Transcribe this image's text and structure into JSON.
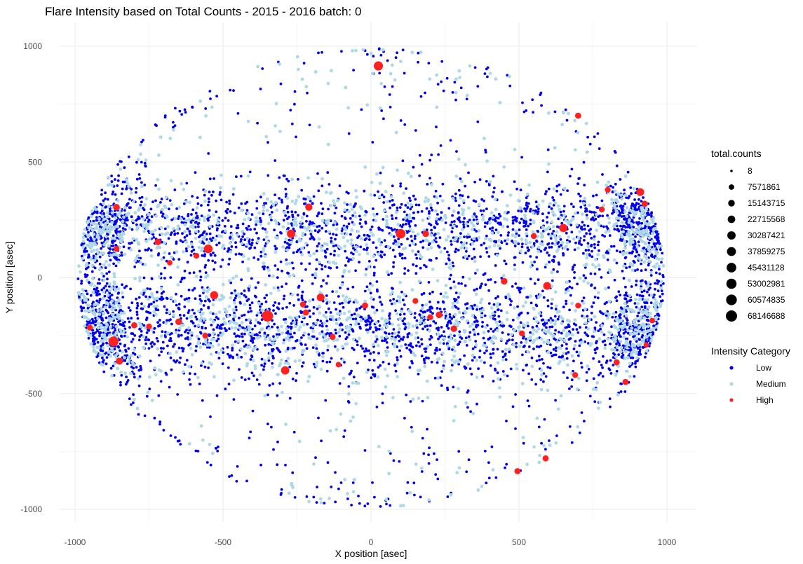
{
  "chart_data": {
    "type": "scatter",
    "title": "Flare Intensity based on Total Counts - 2015 - 2016  batch:  0",
    "xlabel": "X position [asec]",
    "ylabel": "Y position [asec]",
    "xlim": [
      -1000,
      1000
    ],
    "ylim": [
      -1000,
      1000
    ],
    "x_ticks": [
      -1000,
      -500,
      0,
      500,
      1000
    ],
    "y_ticks": [
      -1000,
      -500,
      0,
      500,
      1000
    ],
    "grid": true,
    "legend_placement": "right",
    "size_legend": {
      "title": "total.counts",
      "entries": [
        "8",
        "7571861",
        "15143715",
        "22715568",
        "30287421",
        "37859275",
        "45431128",
        "53002981",
        "60574835",
        "68146688"
      ]
    },
    "color_legend": {
      "title": "Intensity Category",
      "entries": [
        {
          "label": "Low",
          "color": "#0000ee"
        },
        {
          "label": "Medium",
          "color": "#add8e6"
        },
        {
          "label": "High",
          "color": "#ff2020"
        }
      ]
    },
    "sampled_points": {
      "note_counts_unit": "total.counts",
      "High": [
        {
          "x": 25,
          "y": 915,
          "counts": 40000000
        },
        {
          "x": 100,
          "y": 190,
          "counts": 45000000
        },
        {
          "x": -350,
          "y": -165,
          "counts": 68000000
        },
        {
          "x": -870,
          "y": -275,
          "counts": 50000000
        },
        {
          "x": -270,
          "y": 190,
          "counts": 30000000
        },
        {
          "x": -210,
          "y": 305,
          "counts": 20000000
        },
        {
          "x": -550,
          "y": 125,
          "counts": 35000000
        },
        {
          "x": -530,
          "y": -75,
          "counts": 28000000
        },
        {
          "x": -290,
          "y": -400,
          "counts": 30000000
        },
        {
          "x": -170,
          "y": -85,
          "counts": 25000000
        },
        {
          "x": 650,
          "y": 215,
          "counts": 30000000
        },
        {
          "x": 595,
          "y": -35,
          "counts": 25000000
        },
        {
          "x": 700,
          "y": 700,
          "counts": 12000000
        },
        {
          "x": 590,
          "y": -780,
          "counts": 12000000
        },
        {
          "x": 495,
          "y": -835,
          "counts": 12000000
        },
        {
          "x": 910,
          "y": 370,
          "counts": 25000000
        },
        {
          "x": 450,
          "y": -15,
          "counts": 15000000
        },
        {
          "x": -850,
          "y": -360,
          "counts": 18000000
        },
        {
          "x": -860,
          "y": 305,
          "counts": 15000000
        },
        {
          "x": -720,
          "y": 155,
          "counts": 15000000
        },
        {
          "x": 185,
          "y": 190,
          "counts": 15000000
        },
        {
          "x": 280,
          "y": -220,
          "counts": 15000000
        },
        {
          "x": 230,
          "y": -160,
          "counts": 15000000
        },
        {
          "x": 830,
          "y": -365,
          "counts": 12000000
        },
        {
          "x": 860,
          "y": -450,
          "counts": 12000000
        },
        {
          "x": 690,
          "y": -420,
          "counts": 10000000
        },
        {
          "x": -650,
          "y": -190,
          "counts": 15000000
        },
        {
          "x": -800,
          "y": -205,
          "counts": 12000000
        },
        {
          "x": -20,
          "y": -120,
          "counts": 12000000
        },
        {
          "x": -130,
          "y": -255,
          "counts": 12000000
        },
        {
          "x": 800,
          "y": 380,
          "counts": 10000000
        },
        {
          "x": 780,
          "y": 295,
          "counts": 10000000
        },
        {
          "x": -860,
          "y": 125,
          "counts": 10000000
        },
        {
          "x": -750,
          "y": -210,
          "counts": 10000000
        },
        {
          "x": -220,
          "y": -150,
          "counts": 12000000
        },
        {
          "x": -230,
          "y": -115,
          "counts": 10000000
        },
        {
          "x": 150,
          "y": -100,
          "counts": 10000000
        },
        {
          "x": 200,
          "y": -170,
          "counts": 10000000
        },
        {
          "x": 700,
          "y": -120,
          "counts": 10000000
        },
        {
          "x": 925,
          "y": 320,
          "counts": 12000000
        },
        {
          "x": 550,
          "y": 180,
          "counts": 10000000
        },
        {
          "x": -590,
          "y": 95,
          "counts": 10000000
        },
        {
          "x": -560,
          "y": -250,
          "counts": 10000000
        },
        {
          "x": 510,
          "y": -240,
          "counts": 10000000
        },
        {
          "x": -110,
          "y": -375,
          "counts": 8000000
        },
        {
          "x": -950,
          "y": -215,
          "counts": 10000000
        },
        {
          "x": -680,
          "y": 65,
          "counts": 8000000
        },
        {
          "x": 930,
          "y": -290,
          "counts": 8000000
        },
        {
          "x": 950,
          "y": -185,
          "counts": 8000000
        }
      ]
    }
  }
}
